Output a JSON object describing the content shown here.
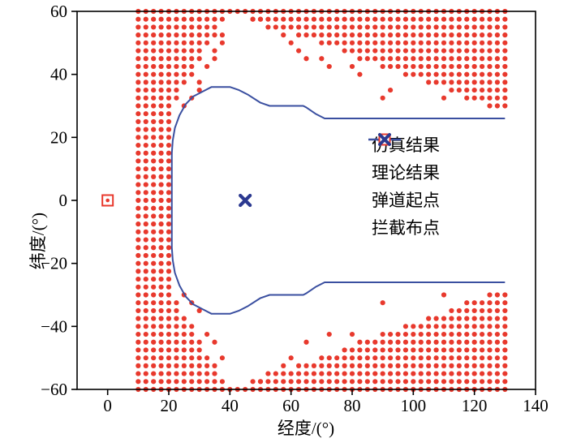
{
  "chart_data": {
    "type": "scatter",
    "title": "",
    "xlabel": "经度/(°)",
    "ylabel": "纬度/(°)",
    "xlim": [
      -10,
      140
    ],
    "ylim": [
      -60,
      60
    ],
    "xticks": [
      0,
      20,
      40,
      60,
      80,
      100,
      120,
      140
    ],
    "yticks": [
      -60,
      -40,
      -20,
      0,
      20,
      40,
      60
    ],
    "grid": false,
    "legend_position": "inside-right-center",
    "colors": {
      "simulation": "#E8392D",
      "theory": "#3A4FA0",
      "launch": "#E8392D",
      "intercept": "#2B3990"
    },
    "legend": [
      {
        "label": "仿真结果",
        "marker": "dot",
        "color": "#E8392D"
      },
      {
        "label": "理论结果",
        "marker": "line",
        "color": "#3A4FA0"
      },
      {
        "label": "弹道起点",
        "marker": "square-dot",
        "color": "#E8392D"
      },
      {
        "label": "拦截布点",
        "marker": "x",
        "color": "#2B3990"
      }
    ],
    "simulation_grid": {
      "x_min": 10,
      "x_max": 130,
      "x_step": 2.5,
      "y_min": -60,
      "y_max": 60,
      "y_step": 2.5,
      "full_columns_x_max": 20,
      "edge_points": [
        [
          20,
          28
        ],
        [
          40,
          60
        ],
        [
          130,
          28
        ]
      ]
    },
    "extra_dots": [
      [
        25,
        30
      ],
      [
        27.5,
        32.5
      ],
      [
        30,
        35
      ],
      [
        30,
        37.5
      ],
      [
        32.5,
        42.5
      ],
      [
        35,
        45
      ],
      [
        35,
        47.5
      ],
      [
        37.5,
        50
      ],
      [
        37.5,
        52.5
      ],
      [
        47.5,
        57.5
      ],
      [
        50,
        57.5
      ],
      [
        52.5,
        55
      ],
      [
        57.5,
        52.5
      ],
      [
        60,
        50
      ],
      [
        62.5,
        47.5
      ],
      [
        65,
        45
      ],
      [
        70,
        45
      ],
      [
        72.5,
        42.5
      ],
      [
        80,
        42.5
      ],
      [
        82.5,
        40
      ],
      [
        90,
        32.5
      ],
      [
        92.5,
        35
      ],
      [
        110,
        32.5
      ],
      [
        25,
        -30
      ],
      [
        27.5,
        -32.5
      ],
      [
        30,
        -35
      ],
      [
        32.5,
        -42.5
      ],
      [
        35,
        -45
      ],
      [
        37.5,
        -50
      ],
      [
        50,
        -57.5
      ],
      [
        52.5,
        -55
      ],
      [
        57.5,
        -52.5
      ],
      [
        60,
        -50
      ],
      [
        65,
        -45
      ],
      [
        72.5,
        -42.5
      ],
      [
        80,
        -42.5
      ],
      [
        90,
        -32.5
      ],
      [
        110,
        -30
      ]
    ],
    "theory_curve": [
      [
        130,
        26
      ],
      [
        71,
        26
      ],
      [
        68,
        27.5
      ],
      [
        65,
        29.5
      ],
      [
        64,
        30
      ],
      [
        53,
        30
      ],
      [
        50,
        31
      ],
      [
        46,
        33.5
      ],
      [
        43,
        35
      ],
      [
        40,
        36
      ],
      [
        34,
        36
      ],
      [
        31,
        34.5
      ],
      [
        28,
        33
      ],
      [
        25.5,
        30.5
      ],
      [
        23.5,
        27
      ],
      [
        22,
        23
      ],
      [
        21.3,
        19
      ],
      [
        21,
        15
      ],
      [
        21,
        -15
      ],
      [
        21.3,
        -19
      ],
      [
        22,
        -23
      ],
      [
        23.5,
        -27
      ],
      [
        25.5,
        -30.5
      ],
      [
        28,
        -33
      ],
      [
        31,
        -34.5
      ],
      [
        34,
        -36
      ],
      [
        40,
        -36
      ],
      [
        43,
        -35
      ],
      [
        46,
        -33.5
      ],
      [
        50,
        -31
      ],
      [
        53,
        -30
      ],
      [
        64,
        -30
      ],
      [
        65,
        -29.5
      ],
      [
        68,
        -27.5
      ],
      [
        71,
        -26
      ],
      [
        130,
        -26
      ]
    ],
    "launch_point": [
      0,
      0
    ],
    "intercept_point": [
      45,
      0
    ]
  }
}
